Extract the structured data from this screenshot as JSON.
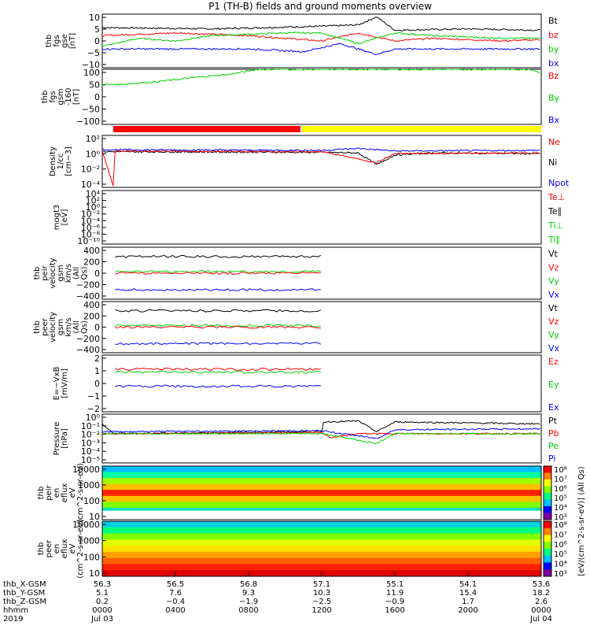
{
  "title": "P1 (TH-B) fields and ground moments overview",
  "colors": {
    "black": "#000000",
    "red": "#ff0000",
    "green": "#00d000",
    "blue": "#0000ff",
    "yellow": "#ffff00"
  },
  "panels": [
    {
      "label": "thb fgs gse [nT]",
      "ticks": [
        "10",
        "5",
        "0",
        "−5",
        "−10"
      ],
      "legend": [
        {
          "text": "Bt",
          "color": "black"
        },
        {
          "text": "bz",
          "color": "red"
        },
        {
          "text": "by",
          "color": "green"
        },
        {
          "text": "bx",
          "color": "blue"
        }
      ]
    },
    {
      "label": "thb fgs gsm -160 [nT]",
      "ticks": [
        "100",
        "50",
        "0",
        "−50",
        "−100"
      ],
      "legend": [
        {
          "text": "Bz",
          "color": "red"
        },
        {
          "text": "By",
          "color": "green"
        },
        {
          "text": "Bx",
          "color": "blue"
        }
      ]
    },
    {
      "label": "",
      "ticks": [],
      "legend": []
    },
    {
      "label": "Density 1/cc [cm−3]",
      "ticks": [
        "10²",
        "10⁰",
        "10⁻²",
        "10⁻⁴"
      ],
      "legend": [
        {
          "text": "Ne",
          "color": "red"
        },
        {
          "text": "Ni",
          "color": "black"
        },
        {
          "text": "Npot",
          "color": "blue"
        }
      ]
    },
    {
      "label": "mogt3 [eV]",
      "ticks": [
        "10⁴",
        "10²",
        "10⁰",
        "10⁻²",
        "10⁻⁴",
        "10⁻⁶",
        "10⁻⁸",
        "10⁻¹⁰"
      ],
      "legend": [
        {
          "text": "Te⊥",
          "color": "red"
        },
        {
          "text": "Te∥",
          "color": "black"
        },
        {
          "text": "Ti⊥",
          "color": "green"
        },
        {
          "text": "Ti∥",
          "color": "green"
        }
      ]
    },
    {
      "label": "thb peir velocity gsm km/s (All Qs)",
      "ticks": [
        "400",
        "200",
        "0",
        "−200",
        "−400"
      ],
      "legend": [
        {
          "text": "Vt",
          "color": "black"
        },
        {
          "text": "Vz",
          "color": "red"
        },
        {
          "text": "Vy",
          "color": "green"
        },
        {
          "text": "Vx",
          "color": "blue"
        }
      ]
    },
    {
      "label": "thb peer velocity gsm km/s (All Qs)",
      "ticks": [
        "400",
        "200",
        "0",
        "−200",
        "−400"
      ],
      "legend": [
        {
          "text": "Vt",
          "color": "black"
        },
        {
          "text": "Vz",
          "color": "red"
        },
        {
          "text": "Vy",
          "color": "green"
        },
        {
          "text": "Vx",
          "color": "blue"
        }
      ]
    },
    {
      "label": "E=−VxB [mV/m]",
      "ticks": [
        "2",
        "1",
        "0",
        "−1",
        "−2"
      ],
      "legend": [
        {
          "text": "Ez",
          "color": "red"
        },
        {
          "text": "Ey",
          "color": "green"
        },
        {
          "text": "Ex",
          "color": "blue"
        }
      ]
    },
    {
      "label": "Pressure [nPa]",
      "ticks": [
        "10⁰",
        "10⁻¹",
        "10⁻²",
        "10⁻³",
        "10⁻⁴",
        "10⁻⁵"
      ],
      "legend": [
        {
          "text": "Pt",
          "color": "black"
        },
        {
          "text": "Pb",
          "color": "red"
        },
        {
          "text": "Pe",
          "color": "green"
        },
        {
          "text": "Pi",
          "color": "blue"
        }
      ]
    },
    {
      "label": "thb peir en eflux eV (cm^2-s-sr-eV)",
      "ticks": [
        "10000",
        "1000",
        "100",
        "10"
      ],
      "legend": []
    },
    {
      "label": "thb peer en eflux eV (cm^2-s-sr-eV)",
      "ticks": [
        "10000",
        "1000",
        "100",
        "10"
      ],
      "legend": []
    }
  ],
  "colorbar": {
    "label": "[eV/(cm^2-s-sr-eV)] (All Qs)",
    "upper_ticks": [
      "10⁸",
      "10⁷",
      "10⁶",
      "10⁵",
      "10⁴",
      "10³"
    ],
    "lower_ticks": [
      "10⁸",
      "10⁷",
      "10⁶",
      "10⁵",
      "10⁴",
      "10³"
    ]
  },
  "xaxis": {
    "row_labels": [
      "thb_X-GSM",
      "thb_Y-GSM",
      "thb_Z-GSM",
      "hhmm",
      "2019"
    ],
    "columns": [
      {
        "x": "56.3",
        "y": "5.1",
        "z": "0.2",
        "t": "0000",
        "d": "Jul 03"
      },
      {
        "x": "56.5",
        "y": "7.6",
        "z": "−0.4",
        "t": "0400",
        "d": ""
      },
      {
        "x": "56.8",
        "y": "9.3",
        "z": "−1.9",
        "t": "0800",
        "d": ""
      },
      {
        "x": "57.1",
        "y": "10.3",
        "z": "−2.5",
        "t": "1200",
        "d": ""
      },
      {
        "x": "55.1",
        "y": "11.9",
        "z": "−0.9",
        "t": "1600",
        "d": ""
      },
      {
        "x": "54.1",
        "y": "15.4",
        "z": "1.7",
        "t": "2000",
        "d": ""
      },
      {
        "x": "53.6",
        "y": "18.2",
        "z": "2.6",
        "t": "0000",
        "d": "Jul 04"
      }
    ]
  },
  "chart_data": {
    "type": "line",
    "time_range": [
      "2019-07-03 00:00",
      "2019-07-04 00:00"
    ],
    "panels": [
      {
        "name": "thb fgs gse",
        "ylim": [
          -10,
          10
        ],
        "series": [
          {
            "name": "Bt",
            "points": [
              [
                0,
                5
              ],
              [
                6,
                4.5
              ],
              [
                12,
                5.5
              ],
              [
                14,
                6
              ],
              [
                15,
                9
              ],
              [
                16,
                4
              ],
              [
                20,
                4.5
              ],
              [
                24,
                4
              ]
            ]
          },
          {
            "name": "bz",
            "points": [
              [
                0,
                2
              ],
              [
                4,
                3
              ],
              [
                8,
                2
              ],
              [
                12,
                0
              ],
              [
                14,
                3
              ],
              [
                16,
                0
              ],
              [
                18,
                1
              ],
              [
                22,
                0
              ],
              [
                24,
                0.5
              ]
            ]
          },
          {
            "name": "by",
            "points": [
              [
                0,
                -2
              ],
              [
                2,
                1
              ],
              [
                4,
                0
              ],
              [
                6,
                2
              ],
              [
                10,
                3
              ],
              [
                12,
                3
              ],
              [
                14,
                -1
              ],
              [
                16,
                3
              ],
              [
                18,
                2
              ],
              [
                22,
                1
              ],
              [
                24,
                1
              ]
            ]
          },
          {
            "name": "bx",
            "points": [
              [
                0,
                -3
              ],
              [
                4,
                -3
              ],
              [
                8,
                -3
              ],
              [
                11,
                -4
              ],
              [
                13,
                -1
              ],
              [
                15,
                -5
              ],
              [
                16,
                -3
              ],
              [
                20,
                -3
              ],
              [
                24,
                -3
              ]
            ]
          }
        ]
      },
      {
        "name": "thb fgs gsm -160",
        "ylim": [
          -100,
          100
        ],
        "series": [
          {
            "name": "By",
            "points": [
              [
                0,
                45
              ],
              [
                1,
                45
              ],
              [
                3,
                55
              ],
              [
                5,
                70
              ],
              [
                7,
                82
              ],
              [
                8.5,
                100
              ],
              [
                23.5,
                100
              ],
              [
                24,
                85
              ]
            ]
          }
        ]
      },
      {
        "name": "Density",
        "ylim": [
          -5,
          3
        ],
        "series": [
          {
            "name": "Ni",
            "points": [
              [
                0,
                0.5
              ],
              [
                12,
                0.4
              ],
              [
                14,
                0.3
              ],
              [
                15,
                -1.5
              ],
              [
                16,
                0
              ],
              [
                18,
                0.3
              ],
              [
                24,
                0.2
              ]
            ]
          },
          {
            "name": "Ne",
            "points": [
              [
                0,
                0.6
              ],
              [
                0.6,
                -4.8
              ],
              [
                0.7,
                0.6
              ],
              [
                12,
                0.5
              ],
              [
                15,
                -1.2
              ],
              [
                16,
                0.2
              ],
              [
                24,
                0.3
              ]
            ]
          },
          {
            "name": "Npot",
            "points": [
              [
                0,
                0.8
              ],
              [
                12,
                0.7
              ],
              [
                14,
                1
              ],
              [
                16,
                0.6
              ],
              [
                24,
                0.7
              ]
            ]
          }
        ]
      },
      {
        "name": "Pressure",
        "ylim": [
          -5,
          0
        ],
        "series": [
          {
            "name": "Pt",
            "points": [
              [
                0,
                -1
              ],
              [
                0.6,
                -2
              ],
              [
                12,
                -1.8
              ],
              [
                12.1,
                -0.8
              ],
              [
                14,
                -0.7
              ],
              [
                15,
                -1.8
              ],
              [
                16,
                -0.8
              ],
              [
                24,
                -1
              ]
            ]
          },
          {
            "name": "Pb",
            "points": [
              [
                0,
                -2
              ],
              [
                12,
                -1.9
              ],
              [
                12.5,
                -2.4
              ],
              [
                14,
                -2
              ],
              [
                16,
                -2
              ],
              [
                24,
                -2
              ]
            ]
          },
          {
            "name": "Pe",
            "points": [
              [
                0,
                -2
              ],
              [
                12,
                -2
              ],
              [
                15,
                -3
              ],
              [
                16,
                -2
              ],
              [
                24,
                -2
              ]
            ]
          },
          {
            "name": "Pi",
            "points": [
              [
                0,
                -1.8
              ],
              [
                12,
                -1.7
              ],
              [
                15,
                -2.5
              ],
              [
                16,
                -1.6
              ],
              [
                24,
                -1.5
              ]
            ]
          }
        ]
      }
    ]
  }
}
